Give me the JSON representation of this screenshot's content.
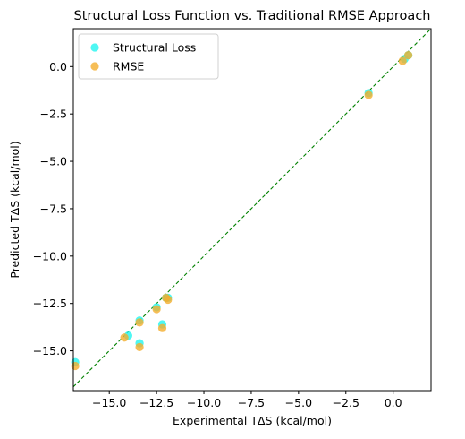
{
  "chart_data": {
    "type": "scatter",
    "title": "Structural Loss Function vs. Traditional RMSE Approach",
    "xlabel": "Experimental TΔS (kcal/mol)",
    "ylabel": "Predicted TΔS (kcal/mol)",
    "xlim": [
      -16.9,
      2.0
    ],
    "ylim": [
      -17.1,
      2.0
    ],
    "xticks": [
      -15.0,
      -12.5,
      -10.0,
      -7.5,
      -5.0,
      -2.5,
      0.0
    ],
    "xtick_labels": [
      "−15.0",
      "−12.5",
      "−10.0",
      "−7.5",
      "−5.0",
      "−2.5",
      "0.0"
    ],
    "yticks": [
      -15.0,
      -12.5,
      -10.0,
      -7.5,
      -5.0,
      -2.5,
      0.0
    ],
    "ytick_labels": [
      "−15.0",
      "−12.5",
      "−10.0",
      "−7.5",
      "−5.0",
      "−2.5",
      "0.0"
    ],
    "grid": false,
    "legend_position": "top-left",
    "reference_line": {
      "style": "dashed",
      "color": "#008000",
      "from": [
        -16.9,
        -16.9
      ],
      "to": [
        2.0,
        2.0
      ]
    },
    "series": [
      {
        "name": "Structural Loss",
        "color": "#22f5f0",
        "x": [
          -16.8,
          -14.0,
          -13.4,
          -13.4,
          -12.5,
          -12.2,
          -12.0,
          -11.9,
          -1.3,
          0.6,
          0.8
        ],
        "y": [
          -15.6,
          -14.2,
          -13.4,
          -14.6,
          -12.7,
          -13.6,
          -12.2,
          -12.2,
          -1.4,
          0.4,
          0.6
        ]
      },
      {
        "name": "RMSE",
        "color": "#f4ae2d",
        "x": [
          -16.8,
          -14.2,
          -13.4,
          -13.4,
          -12.5,
          -12.2,
          -12.0,
          -11.9,
          -1.3,
          0.5,
          0.8
        ],
        "y": [
          -15.8,
          -14.3,
          -13.5,
          -14.8,
          -12.8,
          -13.8,
          -12.2,
          -12.3,
          -1.5,
          0.3,
          0.6
        ]
      }
    ]
  }
}
